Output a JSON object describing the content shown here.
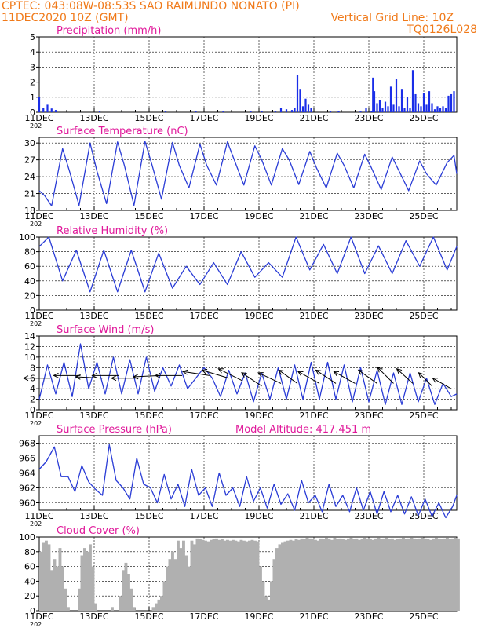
{
  "header": {
    "line1_left": "CPTEC:   043:08W-08:53S   SAO RAIMUNDO NONATO (PI)",
    "line2_left": "11DEC2020 10Z (GMT)",
    "line2_right": "Vertical Grid Line: 10Z",
    "line3_right": "TQ0126L028"
  },
  "colors": {
    "header": "#f07a1a",
    "panel_title": "#e0189a",
    "series_line": "#2a3cd6",
    "precip_bar": "#1a2ee8",
    "cloud_fill": "#b0b0b0",
    "wind_arrow": "#000000"
  },
  "x_tick_labels": [
    "11DEC",
    "13DEC",
    "15DEC",
    "17DEC",
    "19DEC",
    "21DEC",
    "23DEC",
    "25DEC"
  ],
  "year_fragment": "202",
  "chart_data": [
    {
      "id": "precip",
      "type": "bar",
      "title": "Precipitation (mm/h)",
      "ylim": [
        0,
        5
      ],
      "yticks": [
        0,
        1,
        2,
        3,
        4,
        5
      ],
      "x_unit": "day offset from 11DEC 10Z",
      "x_range": [
        0,
        15.2
      ],
      "x": [
        0.0,
        0.15,
        0.3,
        0.45,
        0.6,
        2.2,
        4.6,
        5.7,
        6.7,
        7.7,
        8.1,
        8.6,
        8.8,
        9.0,
        9.2,
        9.3,
        9.4,
        9.5,
        9.6,
        9.7,
        9.8,
        9.9,
        10.6,
        10.9,
        11.7,
        11.9,
        12.1,
        12.15,
        12.2,
        12.3,
        12.4,
        12.5,
        12.6,
        12.7,
        12.8,
        12.9,
        13.0,
        13.1,
        13.2,
        13.3,
        13.4,
        13.5,
        13.6,
        13.7,
        13.8,
        13.9,
        14.0,
        14.1,
        14.2,
        14.3,
        14.4,
        14.5,
        14.6,
        14.7,
        14.8,
        14.9,
        15.0,
        15.1
      ],
      "values": [
        1.0,
        0.3,
        0.5,
        0.25,
        0.15,
        0.05,
        0.05,
        0.05,
        0.05,
        0.05,
        0.1,
        0.05,
        0.3,
        0.2,
        0.15,
        0.3,
        2.5,
        1.5,
        0.4,
        0.9,
        0.5,
        0.3,
        0.1,
        0.1,
        0.05,
        0.3,
        0.1,
        2.3,
        1.4,
        0.6,
        0.8,
        0.3,
        0.7,
        0.4,
        1.7,
        0.5,
        2.2,
        0.4,
        1.5,
        0.3,
        1.0,
        0.3,
        2.8,
        1.2,
        0.6,
        0.4,
        1.3,
        0.5,
        1.4,
        0.6,
        0.2,
        0.4,
        0.3,
        0.4,
        0.3,
        1.1,
        1.2,
        1.4
      ]
    },
    {
      "id": "temp",
      "type": "line",
      "title": "Surface Temperature (nC)",
      "ylim": [
        18,
        31
      ],
      "yticks": [
        18,
        21,
        24,
        27,
        30
      ],
      "x_unit": "day offset from 11DEC 10Z",
      "x_range": [
        0,
        15.2
      ],
      "x": [
        0.0,
        0.2,
        0.45,
        0.85,
        1.1,
        1.45,
        1.85,
        2.1,
        2.45,
        2.85,
        3.1,
        3.45,
        3.85,
        4.1,
        4.45,
        4.85,
        5.1,
        5.45,
        5.85,
        6.1,
        6.45,
        6.85,
        7.1,
        7.45,
        7.85,
        8.1,
        8.45,
        8.85,
        9.1,
        9.45,
        9.85,
        10.1,
        10.45,
        10.85,
        11.1,
        11.45,
        11.85,
        12.1,
        12.45,
        12.85,
        13.1,
        13.45,
        13.85,
        14.1,
        14.45,
        14.85,
        15.1,
        15.2
      ],
      "values": [
        21.5,
        20.6,
        18.8,
        29.0,
        25.0,
        18.9,
        30.0,
        25.0,
        19.2,
        30.2,
        26.0,
        18.9,
        30.3,
        26.2,
        20.0,
        30.1,
        26.0,
        22.0,
        29.8,
        26.0,
        22.5,
        30.2,
        27.0,
        22.5,
        29.5,
        27.0,
        22.5,
        29.0,
        27.0,
        22.6,
        28.5,
        25.5,
        22.0,
        28.2,
        26.0,
        22.0,
        28.0,
        25.5,
        21.7,
        27.5,
        25.0,
        21.5,
        26.8,
        24.5,
        22.5,
        26.5,
        27.8,
        24.5
      ]
    },
    {
      "id": "rh",
      "type": "line",
      "title": "Relative Humidity (%)",
      "ylim": [
        0,
        100
      ],
      "yticks": [
        0,
        20,
        40,
        60,
        80,
        100
      ],
      "x_unit": "day offset from 11DEC 10Z",
      "x_range": [
        0,
        15.2
      ],
      "x": [
        0.0,
        0.35,
        0.85,
        1.35,
        1.85,
        2.35,
        2.85,
        3.35,
        3.85,
        4.35,
        4.85,
        5.35,
        5.85,
        6.35,
        6.85,
        7.35,
        7.85,
        8.35,
        8.85,
        9.35,
        9.85,
        10.35,
        10.85,
        11.35,
        11.85,
        12.35,
        12.85,
        13.35,
        13.85,
        14.35,
        14.85,
        15.2
      ],
      "values": [
        87.0,
        100.0,
        40.0,
        82.0,
        25.0,
        82.0,
        25.0,
        82.0,
        25.0,
        78.0,
        30.0,
        60.0,
        35.0,
        65.0,
        35.0,
        80.0,
        45.0,
        65.0,
        45.0,
        100.0,
        55.0,
        90.0,
        50.0,
        100.0,
        50.0,
        88.0,
        50.0,
        95.0,
        60.0,
        100.0,
        55.0,
        87.0
      ]
    },
    {
      "id": "wind",
      "type": "line",
      "title": "Surface Wind (m/s)",
      "ylim": [
        0,
        14
      ],
      "yticks": [
        0,
        2,
        4,
        6,
        8,
        10,
        12,
        14
      ],
      "x_unit": "day offset from 11DEC 10Z",
      "x_range": [
        0,
        15.2
      ],
      "x": [
        0.0,
        0.3,
        0.6,
        0.9,
        1.2,
        1.5,
        1.8,
        2.1,
        2.4,
        2.7,
        3.0,
        3.3,
        3.6,
        3.9,
        4.2,
        4.5,
        4.8,
        5.1,
        5.4,
        5.7,
        6.0,
        6.3,
        6.6,
        6.9,
        7.2,
        7.5,
        7.8,
        8.1,
        8.4,
        8.7,
        9.0,
        9.3,
        9.6,
        9.9,
        10.2,
        10.5,
        10.8,
        11.1,
        11.4,
        11.7,
        12.0,
        12.3,
        12.6,
        12.9,
        13.2,
        13.5,
        13.8,
        14.1,
        14.4,
        14.7,
        15.0,
        15.2
      ],
      "values": [
        2.0,
        8.5,
        3.0,
        9.0,
        2.5,
        12.5,
        4.0,
        9.0,
        3.0,
        10.0,
        3.0,
        9.5,
        3.0,
        10.0,
        3.5,
        8.0,
        4.5,
        8.5,
        4.0,
        6.0,
        8.0,
        6.0,
        2.5,
        7.5,
        3.0,
        7.0,
        1.5,
        7.0,
        2.0,
        8.0,
        2.0,
        8.5,
        2.0,
        9.0,
        2.0,
        9.0,
        2.0,
        8.5,
        1.5,
        8.0,
        1.5,
        7.5,
        1.0,
        7.0,
        1.0,
        7.0,
        1.5,
        6.0,
        1.0,
        5.0,
        2.5,
        3.0
      ],
      "vectors": {
        "x": [
          0.4,
          1.5,
          2.3,
          2.9,
          3.6,
          4.4,
          5.2,
          6.2,
          6.9,
          7.4,
          8.1,
          8.8,
          9.4,
          10.2,
          10.8,
          11.5,
          12.3,
          12.9,
          13.6,
          14.3,
          15.0
        ],
        "u": [
          -1.0,
          -1.0,
          -1.0,
          -1.0,
          -1.0,
          -1.0,
          -1.0,
          -1.0,
          -1.0,
          -0.9,
          -0.75,
          -0.85,
          -0.7,
          -0.8,
          -0.75,
          -0.8,
          -0.7,
          -0.6,
          -0.6,
          -0.5,
          -0.7
        ],
        "v": [
          0.0,
          0.0,
          0.05,
          0.0,
          0.0,
          -0.05,
          0.0,
          0.15,
          0.3,
          0.45,
          0.5,
          0.4,
          0.5,
          0.45,
          0.5,
          0.45,
          0.5,
          0.6,
          0.55,
          0.5,
          0.4
        ],
        "speed": [
          6.0,
          6.5,
          6.0,
          6.5,
          6.0,
          6.5,
          6.5,
          6.5,
          6.0,
          5.5,
          4.5,
          5.0,
          5.0,
          5.0,
          5.0,
          5.0,
          5.0,
          5.0,
          5.0,
          4.5,
          4.0
        ]
      }
    },
    {
      "id": "pres",
      "type": "line",
      "title": "Surface Pressure (hPa)",
      "subtitle": "Model Altitude: 417.451 m",
      "ylim": [
        959,
        969
      ],
      "yticks": [
        960,
        962,
        964,
        966,
        968
      ],
      "x_unit": "day offset from 11DEC 10Z",
      "x_range": [
        0,
        15.2
      ],
      "x": [
        0.0,
        0.25,
        0.55,
        0.8,
        1.05,
        1.3,
        1.55,
        1.8,
        2.05,
        2.3,
        2.55,
        2.8,
        3.05,
        3.3,
        3.55,
        3.8,
        4.05,
        4.3,
        4.55,
        4.8,
        5.05,
        5.3,
        5.55,
        5.8,
        6.05,
        6.3,
        6.55,
        6.8,
        7.05,
        7.3,
        7.55,
        7.8,
        8.05,
        8.3,
        8.55,
        8.8,
        9.05,
        9.3,
        9.55,
        9.8,
        10.05,
        10.3,
        10.55,
        10.8,
        11.05,
        11.3,
        11.55,
        11.8,
        12.05,
        12.3,
        12.55,
        12.8,
        13.05,
        13.3,
        13.55,
        13.8,
        14.05,
        14.3,
        14.55,
        14.8,
        15.05,
        15.2
      ],
      "values": [
        964.5,
        965.5,
        967.5,
        963.5,
        963.5,
        961.5,
        965.0,
        962.8,
        961.8,
        961.0,
        967.8,
        963.0,
        962.0,
        960.5,
        966.0,
        962.5,
        962.0,
        960.0,
        963.8,
        960.5,
        962.5,
        959.5,
        964.5,
        961.0,
        962.0,
        959.5,
        964.0,
        961.0,
        962.0,
        959.5,
        963.5,
        960.2,
        962.0,
        959.3,
        962.5,
        959.8,
        961.2,
        959.0,
        963.0,
        960.0,
        961.0,
        958.8,
        962.5,
        959.5,
        961.0,
        958.8,
        962.0,
        959.0,
        961.5,
        958.5,
        961.5,
        958.8,
        961.0,
        958.5,
        960.8,
        958.3,
        960.5,
        958.2,
        960.0,
        958.0,
        959.5,
        961.0
      ]
    },
    {
      "id": "cloud",
      "type": "area",
      "title": "Cloud Cover (%)",
      "ylim": [
        0,
        100
      ],
      "yticks": [
        0,
        20,
        40,
        60,
        80,
        100
      ],
      "x_unit": "day offset from 11DEC 10Z",
      "x_range": [
        0,
        15.2
      ],
      "x": [
        0.0,
        0.1,
        0.2,
        0.3,
        0.4,
        0.5,
        0.6,
        0.7,
        0.8,
        0.9,
        1.0,
        1.1,
        1.2,
        1.3,
        1.4,
        1.5,
        1.6,
        1.7,
        1.8,
        1.9,
        2.0,
        2.1,
        2.2,
        2.3,
        2.4,
        2.5,
        2.6,
        2.7,
        2.8,
        2.9,
        3.0,
        3.1,
        3.2,
        3.3,
        3.4,
        3.5,
        3.6,
        3.7,
        3.8,
        3.9,
        4.0,
        4.1,
        4.2,
        4.3,
        4.4,
        4.5,
        4.6,
        4.7,
        4.8,
        4.9,
        5.0,
        5.1,
        5.2,
        5.3,
        5.4,
        5.5,
        5.6,
        5.7,
        5.8,
        5.9,
        6.0,
        6.1,
        6.2,
        6.3,
        6.4,
        6.5,
        6.6,
        6.7,
        6.8,
        6.9,
        7.0,
        7.1,
        7.2,
        7.3,
        7.4,
        7.5,
        7.6,
        7.7,
        7.8,
        7.9,
        8.0,
        8.1,
        8.2,
        8.3,
        8.4,
        8.5,
        8.6,
        8.7,
        8.8,
        8.9,
        9.0,
        9.1,
        9.2,
        9.3,
        9.4,
        9.5,
        9.6,
        9.7,
        9.8,
        9.9,
        10.0,
        10.1,
        10.2,
        10.3,
        10.4,
        10.5,
        10.6,
        10.7,
        10.8,
        10.9,
        11.0,
        11.1,
        11.2,
        11.3,
        11.4,
        11.5,
        11.6,
        11.7,
        11.8,
        11.9,
        12.0,
        12.1,
        12.2,
        12.3,
        12.4,
        12.5,
        12.6,
        12.7,
        12.8,
        12.9,
        13.0,
        13.1,
        13.2,
        13.3,
        13.4,
        13.5,
        13.6,
        13.7,
        13.8,
        13.9,
        14.0,
        14.1,
        14.2,
        14.3,
        14.4,
        14.5,
        14.6,
        14.7,
        14.8,
        14.9,
        15.0,
        15.1,
        15.2
      ],
      "values": [
        80,
        92,
        95,
        90,
        55,
        70,
        60,
        85,
        60,
        30,
        5,
        0,
        0,
        0,
        30,
        75,
        85,
        80,
        90,
        60,
        10,
        0,
        0,
        0,
        0,
        0,
        5,
        0,
        0,
        20,
        55,
        65,
        50,
        30,
        5,
        0,
        0,
        0,
        0,
        0,
        0,
        5,
        10,
        15,
        20,
        40,
        60,
        70,
        80,
        70,
        95,
        85,
        95,
        75,
        60,
        95,
        90,
        98,
        97,
        96,
        95,
        94,
        96,
        97,
        98,
        96,
        97,
        95,
        96,
        95,
        96,
        95,
        94,
        96,
        95,
        94,
        95,
        96,
        95,
        94,
        60,
        40,
        20,
        15,
        40,
        70,
        85,
        90,
        92,
        94,
        95,
        96,
        95,
        97,
        96,
        98,
        97,
        99,
        98,
        97,
        96,
        95,
        98,
        97,
        99,
        98,
        96,
        99,
        97,
        98,
        97,
        96,
        98,
        99,
        97,
        98,
        96,
        97,
        99,
        98,
        97,
        96,
        98,
        99,
        97,
        98,
        99,
        97,
        98,
        96,
        97,
        98,
        99,
        97,
        98,
        99,
        98,
        97,
        98,
        99,
        98,
        97,
        96,
        98,
        99,
        98,
        97,
        98,
        99,
        97,
        98,
        99,
        98
      ]
    }
  ]
}
